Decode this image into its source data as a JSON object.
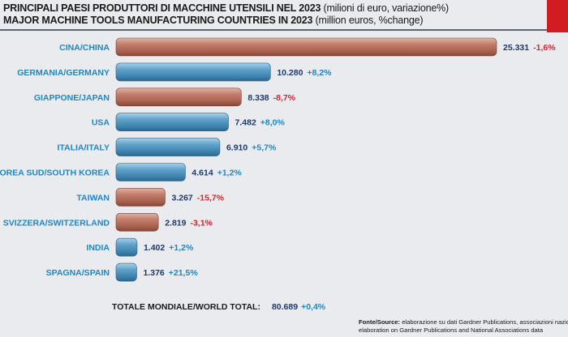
{
  "title_it_main": "PRINCIPALI PAESI PRODUTTORI DI MACCHINE UTENSILI NEL 2023",
  "title_it_paren": "(milioni di euro, variazione%)",
  "title_en_main": "MAJOR MACHINE TOOLS MANUFACTURING COUNTRIES IN 2023",
  "title_en_paren": "(million euros, %change)",
  "total": {
    "label": "TOTALE MONDIALE/WORLD TOTAL:",
    "value": "80.689",
    "change": "+0,4%"
  },
  "source": {
    "label": "Fonte/Source:",
    "line1": "elaborazione su dati Gardner Publications, associazioni nazionali/",
    "line2": "elaboration on Gardner Publications and National Associations data"
  },
  "colors": {
    "bar_blue": "#4d93bd",
    "bar_brown": "#b5705e",
    "label_blue": "#1e86c8",
    "value_navy": "#1e3a6e",
    "negative_red": "#e02028",
    "accent_red": "#d11c22"
  },
  "chart_data": {
    "type": "bar",
    "orientation": "horizontal",
    "categories": [
      "CINA/CHINA",
      "GERMANIA/GERMANY",
      "GIAPPONE/JAPAN",
      "USA",
      "ITALIA/ITALY",
      "COREA SUD/SOUTH KOREA",
      "TAIWAN",
      "SVIZZERA/SWITZERLAND",
      "INDIA",
      "SPAGNA/SPAIN"
    ],
    "values": [
      25331,
      10280,
      8338,
      7482,
      6910,
      4614,
      3267,
      2819,
      1402,
      1376
    ],
    "value_labels": [
      "25.331",
      "10.280",
      "8.338",
      "7.482",
      "6.910",
      "4.614",
      "3.267",
      "2.819",
      "1.402",
      "1.376"
    ],
    "changes": [
      "-1,6%",
      "+8,2%",
      "-8,7%",
      "+8,0%",
      "+5,7%",
      "+1,2%",
      "-15,7%",
      "-3,1%",
      "+1,2%",
      "+21,5%"
    ],
    "change_values": [
      -1.6,
      8.2,
      -8.7,
      8.0,
      5.7,
      1.2,
      -15.7,
      -3.1,
      1.2,
      21.5
    ],
    "bar_color_rule": "brown for negative change, blue for positive change",
    "grid": false,
    "legend": "none"
  }
}
